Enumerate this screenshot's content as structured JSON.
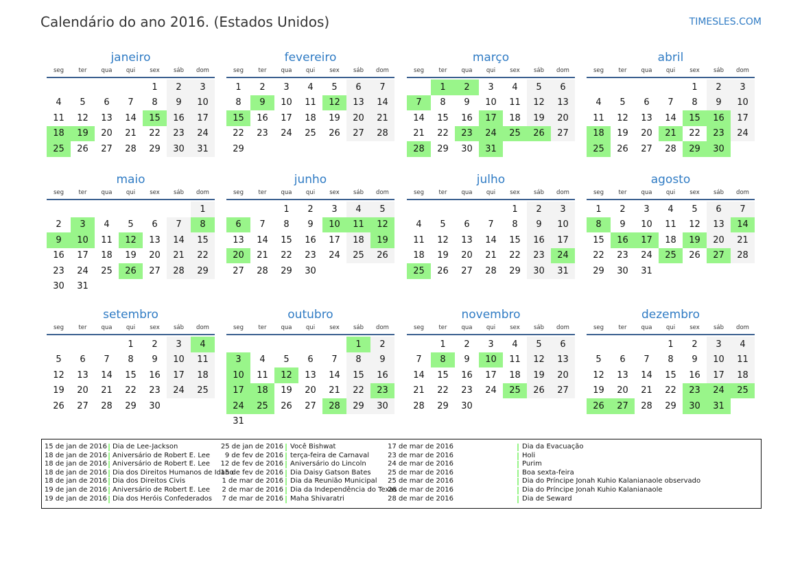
{
  "header": {
    "title": "Calendário do ano 2016. (Estados Unidos)",
    "site": "TIMESLES.COM"
  },
  "year": 2016,
  "weekdays": [
    "seg",
    "ter",
    "qua",
    "qui",
    "sex",
    "sáb",
    "dom"
  ],
  "colors": {
    "holiday": "#99f58a",
    "weekend": "#f3f3f3",
    "accent": "#2f7bc4"
  },
  "months": [
    {
      "name": "janeiro",
      "holidays": [
        15,
        18,
        19,
        25
      ]
    },
    {
      "name": "fevereiro",
      "holidays": [
        9,
        12,
        15
      ]
    },
    {
      "name": "março",
      "holidays": [
        1,
        2,
        7,
        17,
        23,
        24,
        25,
        26,
        28,
        31
      ]
    },
    {
      "name": "abril",
      "holidays": [
        15,
        16,
        18,
        21,
        23,
        25,
        29,
        30
      ]
    },
    {
      "name": "maio",
      "holidays": [
        3,
        8,
        9,
        10,
        12,
        26
      ]
    },
    {
      "name": "junho",
      "holidays": [
        6,
        10,
        11,
        12,
        19,
        20
      ]
    },
    {
      "name": "julho",
      "holidays": [
        24,
        25
      ]
    },
    {
      "name": "agosto",
      "holidays": [
        8,
        14,
        16,
        17,
        19,
        25,
        27
      ]
    },
    {
      "name": "setembro",
      "holidays": [
        4
      ]
    },
    {
      "name": "outubro",
      "holidays": [
        1,
        3,
        10,
        12,
        17,
        18,
        23,
        24,
        25,
        28
      ]
    },
    {
      "name": "novembro",
      "holidays": [
        8,
        10,
        25
      ]
    },
    {
      "name": "dezembro",
      "holidays": [
        23,
        24,
        25,
        26,
        27,
        30,
        31
      ]
    }
  ],
  "legend": [
    [
      {
        "date": "15 de jan de 2016",
        "name": "Dia de Lee-Jackson"
      },
      {
        "date": "18 de jan de 2016",
        "name": "Aniversário de Robert E. Lee"
      },
      {
        "date": "18 de jan de 2016",
        "name": "Aniversário de Robert E. Lee"
      },
      {
        "date": "18 de jan de 2016",
        "name": "Dia dos Direitos Humanos de Idaho"
      },
      {
        "date": "18 de jan de 2016",
        "name": "Dia dos Direitos Civis"
      },
      {
        "date": "19 de jan de 2016",
        "name": "Aniversário de Robert E. Lee"
      },
      {
        "date": "19 de jan de 2016",
        "name": "Dia dos Heróis Confederados"
      }
    ],
    [
      {
        "date": "25 de jan de 2016",
        "name": "Você Bishwat"
      },
      {
        "date": "9 de fev de 2016",
        "name": "terça-feira de Carnaval"
      },
      {
        "date": "12 de fev de 2016",
        "name": "Aniversário do Lincoln"
      },
      {
        "date": "15 de fev de 2016",
        "name": "Dia Daisy Gatson Bates"
      },
      {
        "date": "1 de mar de 2016",
        "name": "Dia da Reunião Municipal"
      },
      {
        "date": "2 de mar de 2016",
        "name": "Dia da Independência do Texas"
      },
      {
        "date": "7 de mar de 2016",
        "name": "Maha Shivaratri"
      }
    ],
    [
      {
        "date": "17 de mar de 2016",
        "name": "Dia da Evacuação"
      },
      {
        "date": "23 de mar de 2016",
        "name": "Holi"
      },
      {
        "date": "24 de mar de 2016",
        "name": "Purim"
      },
      {
        "date": "25 de mar de 2016",
        "name": "Boa sexta-feira"
      },
      {
        "date": "25 de mar de 2016",
        "name": "Dia do Príncipe Jonah Kuhio Kalanianaole observado"
      },
      {
        "date": "26 de mar de 2016",
        "name": "Dia do Príncipe Jonah Kuhio Kalanianaole"
      },
      {
        "date": "28 de mar de 2016",
        "name": "Dia de Seward"
      }
    ]
  ]
}
